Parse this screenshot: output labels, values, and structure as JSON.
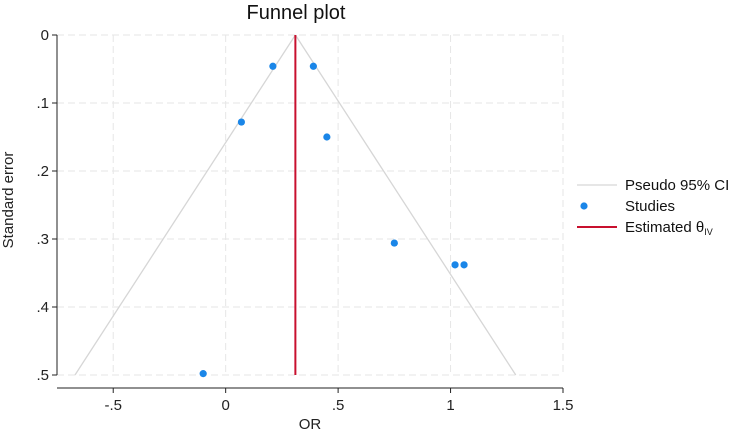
{
  "chart_data": {
    "type": "scatter",
    "title": "Funnel plot",
    "xlabel": "OR",
    "ylabel": "Standard error",
    "xlim": [
      -0.75,
      1.5
    ],
    "ylim": [
      0,
      0.5
    ],
    "y_reversed": true,
    "grid": true,
    "legend_position": "right",
    "x_ticks": [
      {
        "value": -0.5,
        "label": "-.5"
      },
      {
        "value": 0,
        "label": "0"
      },
      {
        "value": 0.5,
        "label": ".5"
      },
      {
        "value": 1,
        "label": "1"
      },
      {
        "value": 1.5,
        "label": "1.5"
      }
    ],
    "y_ticks": [
      {
        "value": 0,
        "label": "0"
      },
      {
        "value": 0.1,
        "label": ".1"
      },
      {
        "value": 0.2,
        "label": ".2"
      },
      {
        "value": 0.3,
        "label": ".3"
      },
      {
        "value": 0.4,
        "label": ".4"
      },
      {
        "value": 0.5,
        "label": ".5"
      }
    ],
    "estimated_theta": 0.31,
    "pseudo_ci_z": 1.96,
    "studies": [
      {
        "x": 0.21,
        "y": 0.046
      },
      {
        "x": 0.39,
        "y": 0.046
      },
      {
        "x": 0.07,
        "y": 0.128
      },
      {
        "x": 0.45,
        "y": 0.15
      },
      {
        "x": 0.75,
        "y": 0.306
      },
      {
        "x": 1.02,
        "y": 0.338
      },
      {
        "x": 1.06,
        "y": 0.338
      },
      {
        "x": -0.1,
        "y": 0.498
      }
    ],
    "legend": [
      {
        "label": "Pseudo 95% CI",
        "kind": "line",
        "color": "#d6d6d6"
      },
      {
        "label": "Studies",
        "kind": "marker",
        "color": "#1a86e8"
      },
      {
        "label": "Estimated θ",
        "subscript": "IV",
        "kind": "line",
        "color": "#c8102e"
      }
    ],
    "colors": {
      "studies": "#1a86e8",
      "estimate": "#c8102e",
      "ci": "#d6d6d6",
      "grid": "#e6e6e6",
      "axis": "#222222"
    }
  }
}
